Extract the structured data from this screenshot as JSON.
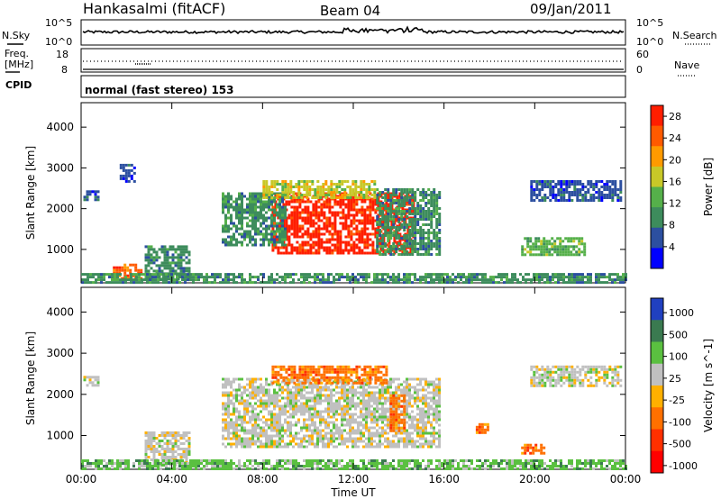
{
  "header": {
    "station": "Hankasalmi (fitACF)",
    "beam": "Beam 04",
    "date": "09/Jan/2011"
  },
  "strips": {
    "nsky_label": "N.Sky",
    "nsearch_label": "N.Search",
    "freq_label_1": "Freq.",
    "freq_label_2": "[MHz]",
    "nave_label": "Nave",
    "cpid_label": "CPID",
    "cpid_text": "normal (fast stereo) 153",
    "noise_left_ticks": [
      "10^5",
      "10^0"
    ],
    "noise_right_ticks": [
      "10^5",
      "10^0"
    ],
    "freq_ticks": [
      "18",
      "8"
    ],
    "nave_ticks": [
      "60",
      "0"
    ]
  },
  "colors": {
    "power": [
      "#0000ff",
      "#2c4fa0",
      "#3d8c5c",
      "#55b04a",
      "#c8c828",
      "#ff9a00",
      "#ff5a00",
      "#ff1e00"
    ],
    "velocity": [
      "#2040c0",
      "#3a7a50",
      "#5ac040",
      "#c0c0c0",
      "#ffb000",
      "#ff7000",
      "#ff3000",
      "#ff0000"
    ]
  },
  "chart_data": [
    {
      "type": "heatmap",
      "title": "",
      "xlabel": "",
      "ylabel": "Slant Range [km]",
      "xticks": [
        "00:00",
        "04:00",
        "08:00",
        "12:00",
        "16:00",
        "20:00",
        "00:00"
      ],
      "yticks": [
        "1000",
        "2000",
        "3000",
        "4000"
      ],
      "xlim_hours": [
        0,
        24
      ],
      "ylim_km": [
        180,
        4600
      ],
      "colorbar": {
        "label": "Power [dB]",
        "ticks": [
          "4",
          "8",
          "12",
          "16",
          "20",
          "24",
          "28"
        ],
        "range": [
          0,
          30
        ]
      },
      "regions": [
        {
          "t0": 8.4,
          "t1": 14.6,
          "r0": 900,
          "r1": 2400,
          "level": 27
        },
        {
          "t0": 6.2,
          "t1": 9.0,
          "r0": 1100,
          "r1": 2400,
          "level": 10
        },
        {
          "t0": 13.0,
          "t1": 15.8,
          "r0": 900,
          "r1": 2500,
          "level": 10
        },
        {
          "t0": 8.0,
          "t1": 13.0,
          "r0": 2300,
          "r1": 2700,
          "level": 16
        },
        {
          "t0": 2.8,
          "t1": 4.8,
          "r0": 300,
          "r1": 1100,
          "level": 10
        },
        {
          "t0": 1.4,
          "t1": 2.6,
          "r0": 300,
          "r1": 650,
          "level": 25
        },
        {
          "t0": 0.0,
          "t1": 24.0,
          "r0": 180,
          "r1": 420,
          "level": 8
        },
        {
          "t0": 19.4,
          "t1": 22.2,
          "r0": 900,
          "r1": 1300,
          "level": 14
        },
        {
          "t0": 19.8,
          "t1": 23.8,
          "r0": 2200,
          "r1": 2700,
          "level": 6
        },
        {
          "t0": 0.1,
          "t1": 0.8,
          "r0": 2250,
          "r1": 2450,
          "level": 5
        },
        {
          "t0": 1.7,
          "t1": 2.3,
          "r0": 2700,
          "r1": 3100,
          "level": 6
        }
      ]
    },
    {
      "type": "heatmap",
      "title": "",
      "xlabel": "Time UT",
      "ylabel": "Slant Range [km]",
      "xticks": [
        "00:00",
        "04:00",
        "08:00",
        "12:00",
        "16:00",
        "20:00",
        "00:00"
      ],
      "yticks": [
        "1000",
        "2000",
        "3000",
        "4000"
      ],
      "xlim_hours": [
        0,
        24
      ],
      "ylim_km": [
        180,
        4600
      ],
      "colorbar": {
        "label": "Velocity [m s^-1]",
        "ticks": [
          "1000",
          "500",
          "100",
          "25",
          "-25",
          "-100",
          "-500",
          "-1000"
        ]
      },
      "regions": [
        {
          "t0": 6.2,
          "t1": 15.8,
          "r0": 700,
          "r1": 2400,
          "level": 0
        },
        {
          "t0": 8.4,
          "t1": 13.5,
          "r0": 2300,
          "r1": 2700,
          "level": -300
        },
        {
          "t0": 2.8,
          "t1": 4.8,
          "r0": 300,
          "r1": 1100,
          "level": 0
        },
        {
          "t0": 0.0,
          "t1": 24.0,
          "r0": 180,
          "r1": 420,
          "level": 60
        },
        {
          "t0": 17.4,
          "t1": 17.9,
          "r0": 1100,
          "r1": 1300,
          "level": -400
        },
        {
          "t0": 19.4,
          "t1": 20.4,
          "r0": 600,
          "r1": 800,
          "level": -300
        },
        {
          "t0": 19.8,
          "t1": 23.8,
          "r0": 2200,
          "r1": 2700,
          "level": 0
        },
        {
          "t0": 13.6,
          "t1": 14.2,
          "r0": 1100,
          "r1": 2000,
          "level": -400
        },
        {
          "t0": 0.1,
          "t1": 0.8,
          "r0": 2250,
          "r1": 2450,
          "level": 0
        }
      ]
    }
  ]
}
